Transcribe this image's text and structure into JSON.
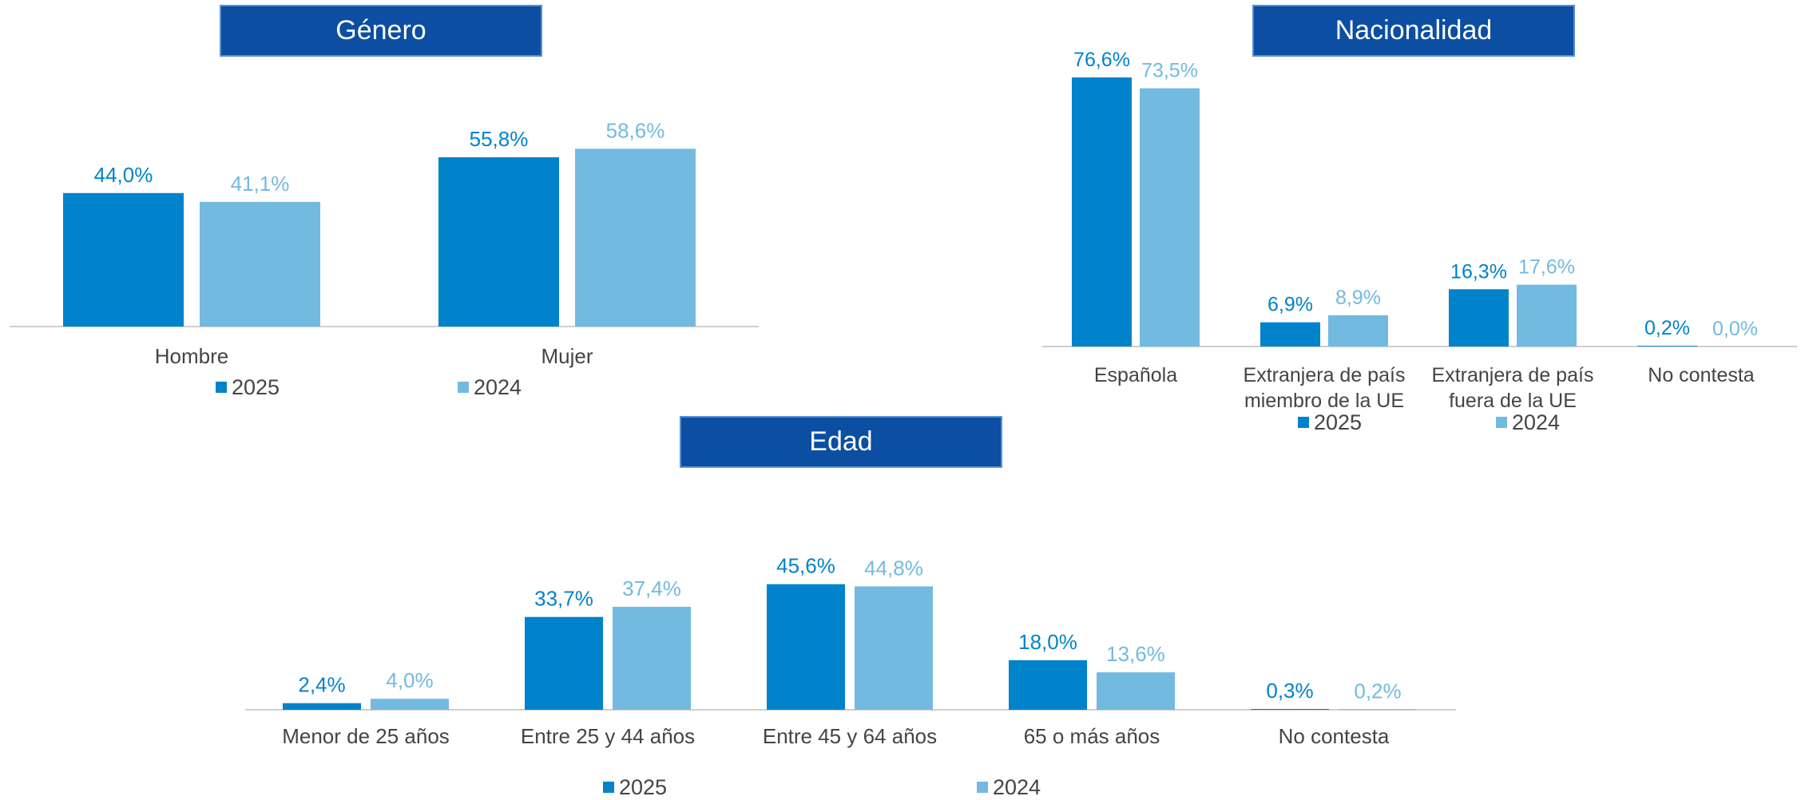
{
  "colors": {
    "series2025": "#0083ca",
    "series2024": "#73bae1",
    "title_bg": "#0b4ea2",
    "title_text": "#ffffff",
    "axis": "#d0d0d0",
    "category_text": "#444444"
  },
  "legend": {
    "s2025": "2025",
    "s2024": "2024"
  },
  "chart_data": [
    {
      "type": "bar",
      "title": "Género",
      "categories": [
        "Hombre",
        "Mujer"
      ],
      "series": [
        {
          "name": "2025",
          "values": [
            44.0,
            55.8
          ],
          "labels": [
            "44,0%",
            "55,8%"
          ]
        },
        {
          "name": "2024",
          "values": [
            41.1,
            58.6
          ],
          "labels": [
            "41,1%",
            "58,6%"
          ]
        }
      ],
      "ylim": [
        0,
        100
      ],
      "grid": false,
      "legend_position": "bottom"
    },
    {
      "type": "bar",
      "title": "Nacionalidad",
      "categories": [
        [
          "Española"
        ],
        [
          "Extranjera de país",
          "miembro de la UE"
        ],
        [
          "Extranjera de país",
          "fuera de la UE"
        ],
        [
          "No contesta"
        ]
      ],
      "series": [
        {
          "name": "2025",
          "values": [
            76.6,
            6.9,
            16.3,
            0.2
          ],
          "labels": [
            "76,6%",
            "6,9%",
            "16,3%",
            "0,2%"
          ]
        },
        {
          "name": "2024",
          "values": [
            73.5,
            8.9,
            17.6,
            0.0
          ],
          "labels": [
            "73,5%",
            "8,9%",
            "17,6%",
            "0,0%"
          ]
        }
      ],
      "ylim": [
        0,
        100
      ],
      "grid": false,
      "legend_position": "bottom"
    },
    {
      "type": "bar",
      "title": "Edad",
      "categories": [
        "Menor de 25 años",
        "Entre 25 y 44 años",
        "Entre 45 y 64 años",
        "65 o más años",
        "No contesta"
      ],
      "series": [
        {
          "name": "2025",
          "values": [
            2.4,
            33.7,
            45.6,
            18.0,
            0.3
          ],
          "labels": [
            "2,4%",
            "33,7%",
            "45,6%",
            "18,0%",
            "0,3%"
          ]
        },
        {
          "name": "2024",
          "values": [
            4.0,
            37.4,
            44.8,
            13.6,
            0.2
          ],
          "labels": [
            "4,0%",
            "37,4%",
            "44,8%",
            "13,6%",
            "0,2%"
          ]
        }
      ],
      "ylim": [
        0,
        100
      ],
      "grid": false,
      "legend_position": "bottom"
    }
  ]
}
